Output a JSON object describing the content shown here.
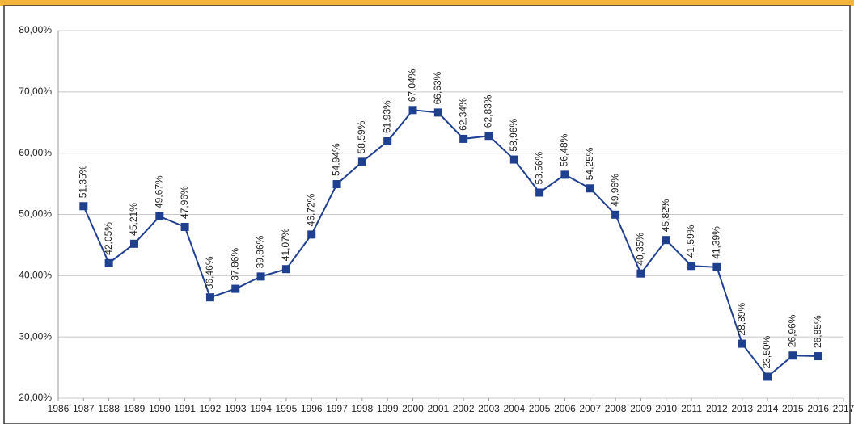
{
  "chart_data": {
    "type": "line",
    "x": [
      1987,
      1988,
      1989,
      1990,
      1991,
      1992,
      1993,
      1994,
      1995,
      1996,
      1997,
      1998,
      1999,
      2000,
      2001,
      2002,
      2003,
      2004,
      2005,
      2006,
      2007,
      2008,
      2009,
      2010,
      2011,
      2012,
      2013,
      2014,
      2015,
      2016
    ],
    "series": [
      {
        "name": "",
        "color": "#1f3f8f",
        "values": [
          51.35,
          42.05,
          45.21,
          49.67,
          47.96,
          36.46,
          37.86,
          39.86,
          41.07,
          46.72,
          54.94,
          58.59,
          61.93,
          67.04,
          66.63,
          62.34,
          62.83,
          58.96,
          53.56,
          56.48,
          54.25,
          49.96,
          40.35,
          45.82,
          41.59,
          41.39,
          28.89,
          23.5,
          26.96,
          26.85
        ],
        "value_labels": [
          "51,35%",
          "42,05%",
          "45,21%",
          "49,67%",
          "47,96%",
          "36,46%",
          "37,86%",
          "39,86%",
          "41,07%",
          "46,72%",
          "54,94%",
          "58,59%",
          "61,93%",
          "67,04%",
          "66,63%",
          "62,34%",
          "62,83%",
          "58,96%",
          "53,56%",
          "56,48%",
          "54,25%",
          "49,96%",
          "40,35%",
          "45,82%",
          "41,59%",
          "41,39%",
          "28,89%",
          "23,50%",
          "26,96%",
          "26,85%"
        ]
      }
    ],
    "xlim": [
      1986,
      2017
    ],
    "xticks": [
      1986,
      1987,
      1988,
      1989,
      1990,
      1991,
      1992,
      1993,
      1994,
      1995,
      1996,
      1997,
      1998,
      1999,
      2000,
      2001,
      2002,
      2003,
      2004,
      2005,
      2006,
      2007,
      2008,
      2009,
      2010,
      2011,
      2012,
      2013,
      2014,
      2015,
      2016,
      2017
    ],
    "ylim": [
      20,
      80
    ],
    "yticks": [
      {
        "value": 20,
        "label": "20,00%"
      },
      {
        "value": 30,
        "label": "30,00%"
      },
      {
        "value": 40,
        "label": "40,00%"
      },
      {
        "value": 50,
        "label": "50,00%"
      },
      {
        "value": 60,
        "label": "60,00%"
      },
      {
        "value": 70,
        "label": "70,00%"
      },
      {
        "value": 80,
        "label": "80,00%"
      }
    ],
    "grid": true
  }
}
